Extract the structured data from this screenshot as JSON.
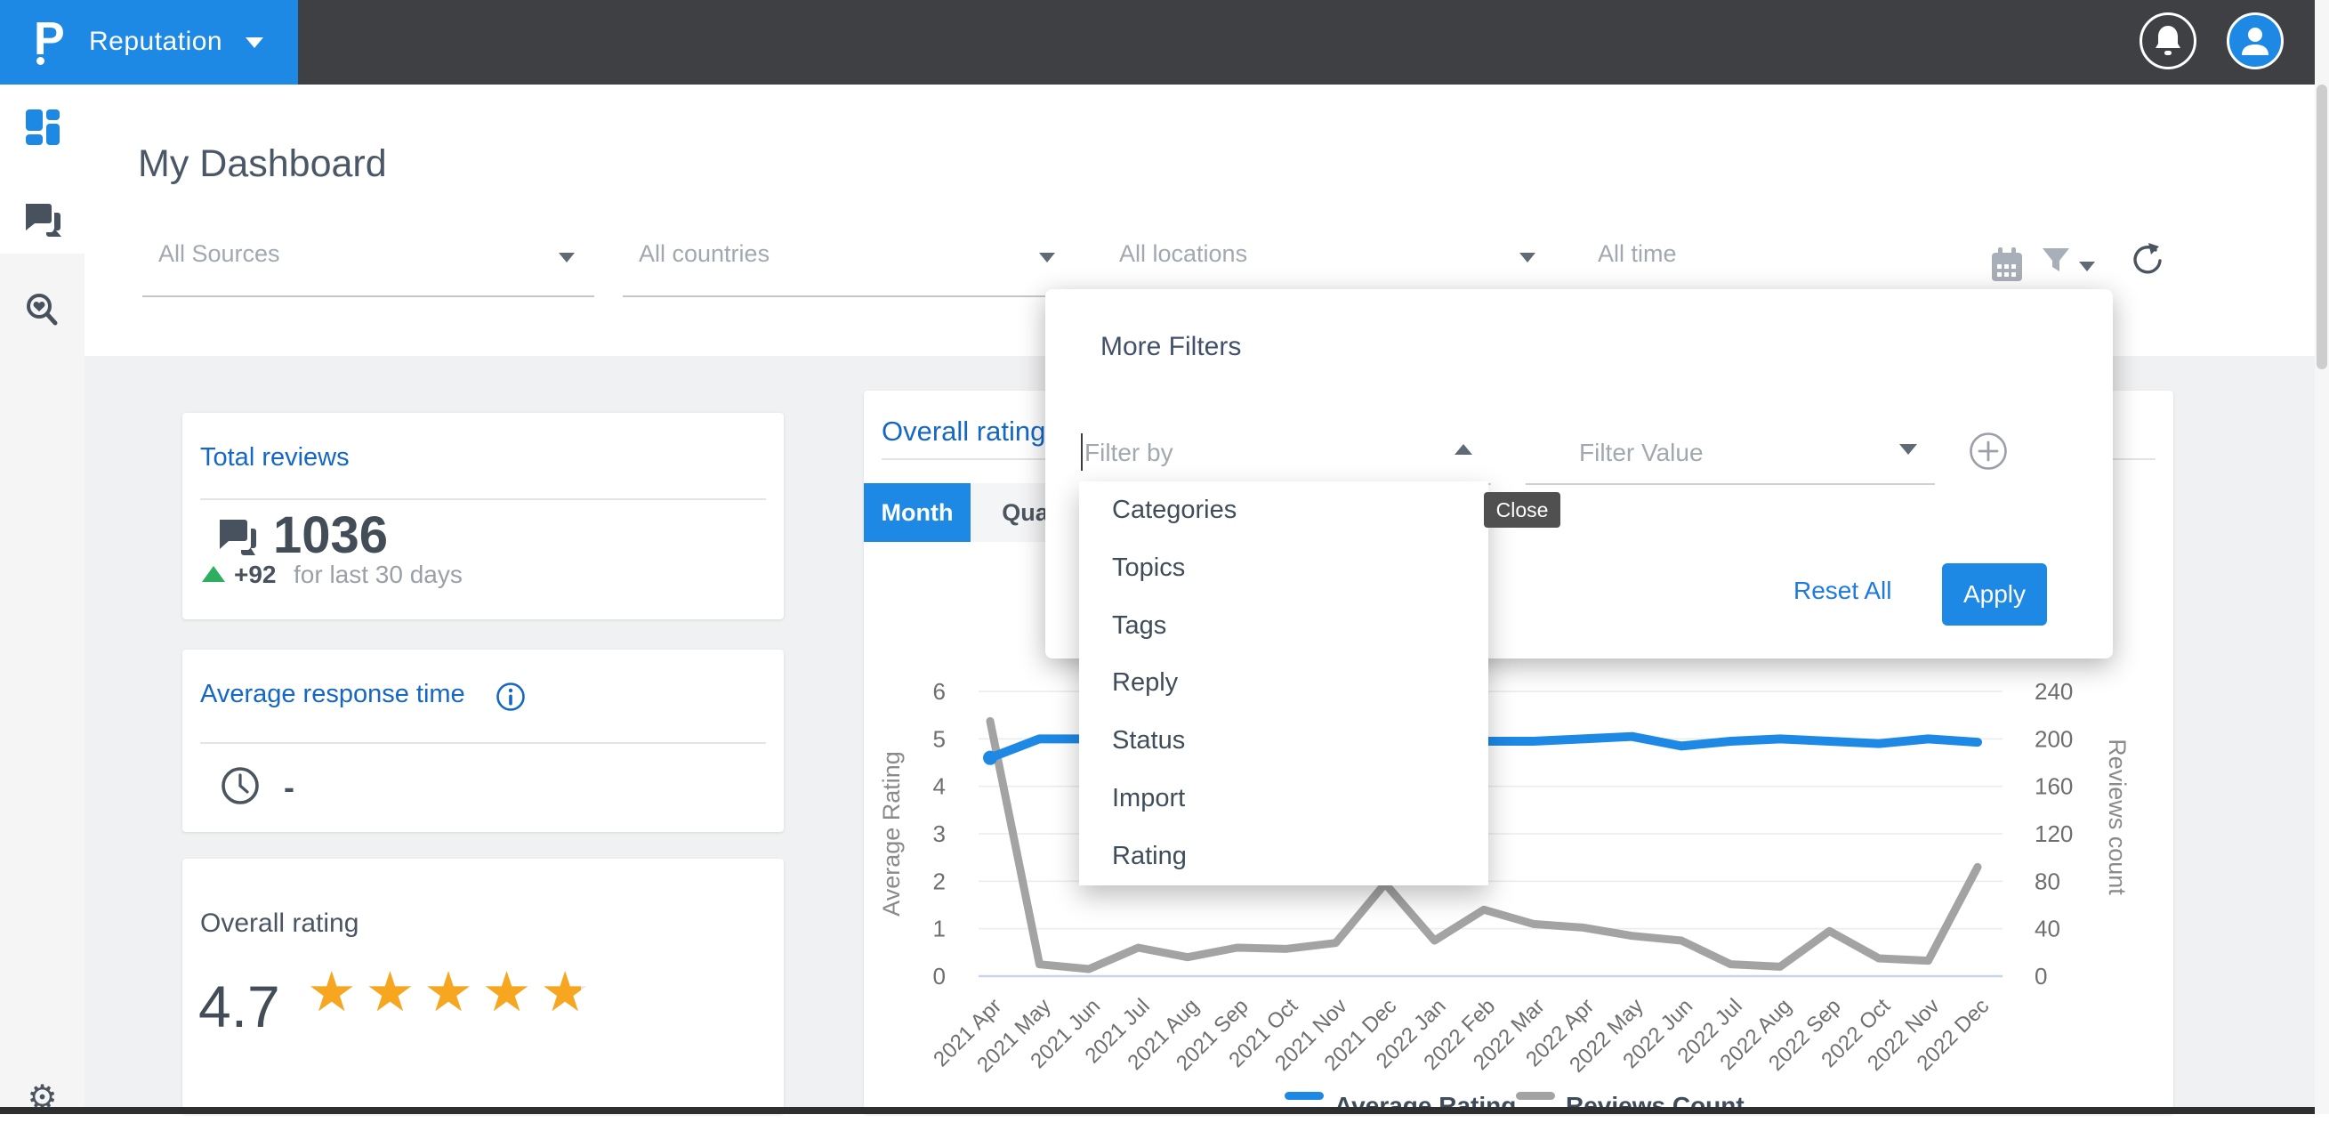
{
  "header": {
    "product": "Reputation"
  },
  "page": {
    "title": "My Dashboard"
  },
  "filters": {
    "sources": "All Sources",
    "countries": "All countries",
    "locations": "All locations",
    "time": "All time"
  },
  "icons": {
    "header": [
      "notifications-bell-icon",
      "user-avatar-icon"
    ],
    "sidebar": [
      "dashboard-icon",
      "conversations-icon",
      "review-search-icon",
      "settings-gear-icon"
    ],
    "filter_bar": [
      "calendar-icon",
      "filter-funnel-icon",
      "filter-caret-icon",
      "refresh-icon"
    ],
    "popover": [
      "collapse-caret-icon",
      "expand-caret-icon",
      "add-filter-plus-icon"
    ],
    "cards": [
      "reviews-chat-icon",
      "trend-up-icon",
      "info-icon",
      "clock-icon",
      "star-icon"
    ]
  },
  "more_filters": {
    "title": "More Filters",
    "filter_by_placeholder": "Filter by",
    "filter_value_placeholder": "Filter Value",
    "filter_by_options": [
      "Categories",
      "Topics",
      "Tags",
      "Reply",
      "Status",
      "Import",
      "Rating"
    ],
    "close_tooltip": "Close",
    "reset_label": "Reset All",
    "apply_label": "Apply"
  },
  "cards": {
    "total_reviews": {
      "title": "Total reviews",
      "value": "1036",
      "delta": "+92",
      "delta_suffix": "for last 30 days"
    },
    "avg_response_time": {
      "title": "Average response time",
      "value": "-"
    },
    "overall_rating": {
      "title": "Overall rating",
      "value": "4.7",
      "stars_filled": 4.7,
      "stars_total": 5
    }
  },
  "chart_card": {
    "title": "Overall rating",
    "tabs": [
      {
        "label": "Month",
        "active": true
      },
      {
        "label": "Quarter",
        "active": false
      }
    ]
  },
  "chart_data": {
    "type": "line",
    "title": "Overall rating",
    "categories": [
      "2021 Apr",
      "2021 May",
      "2021 Jun",
      "2021 Jul",
      "2021 Aug",
      "2021 Sep",
      "2021 Oct",
      "2021 Nov",
      "2021 Dec",
      "2022 Jan",
      "2022 Feb",
      "2022 Mar",
      "2022 Apr",
      "2022 May",
      "2022 Jun",
      "2022 Jul",
      "2022 Aug",
      "2022 Sep",
      "2022 Oct",
      "2022 Nov",
      "2022 Dec"
    ],
    "series": [
      {
        "name": "Average Rating",
        "axis": "left",
        "color": "#1e88e5",
        "values": [
          4.6,
          5,
          5,
          5,
          5,
          5,
          5,
          5,
          5,
          5,
          4.95,
          4.95,
          5,
          5.05,
          4.85,
          4.95,
          5,
          4.95,
          4.9,
          5,
          4.93
        ]
      },
      {
        "name": "Reviews Count",
        "axis": "right",
        "color": "#a3a3a3",
        "values": [
          215,
          10,
          6,
          24,
          16,
          24,
          23,
          28,
          78,
          30,
          56,
          44,
          41,
          34,
          30,
          10,
          8,
          38,
          15,
          13,
          92
        ]
      }
    ],
    "left_axis": {
      "label": "Average Rating",
      "min": 0,
      "max": 6,
      "ticks": [
        0,
        1,
        2,
        3,
        4,
        5,
        6
      ]
    },
    "right_axis": {
      "label": "Reviews count",
      "min": 0,
      "max": 240,
      "ticks": [
        0,
        40,
        80,
        120,
        160,
        200,
        240
      ]
    },
    "grid": true,
    "legend_position": "bottom"
  },
  "colors": {
    "accent": "#1e88e5",
    "heading_link": "#1467c5",
    "slate_text": "#47525e",
    "green_up": "#2eae5f",
    "star": "#f6a71f",
    "gray_line": "#a3a3a3",
    "header_bar": "#3f4043",
    "tooltip_bg": "#505050"
  }
}
